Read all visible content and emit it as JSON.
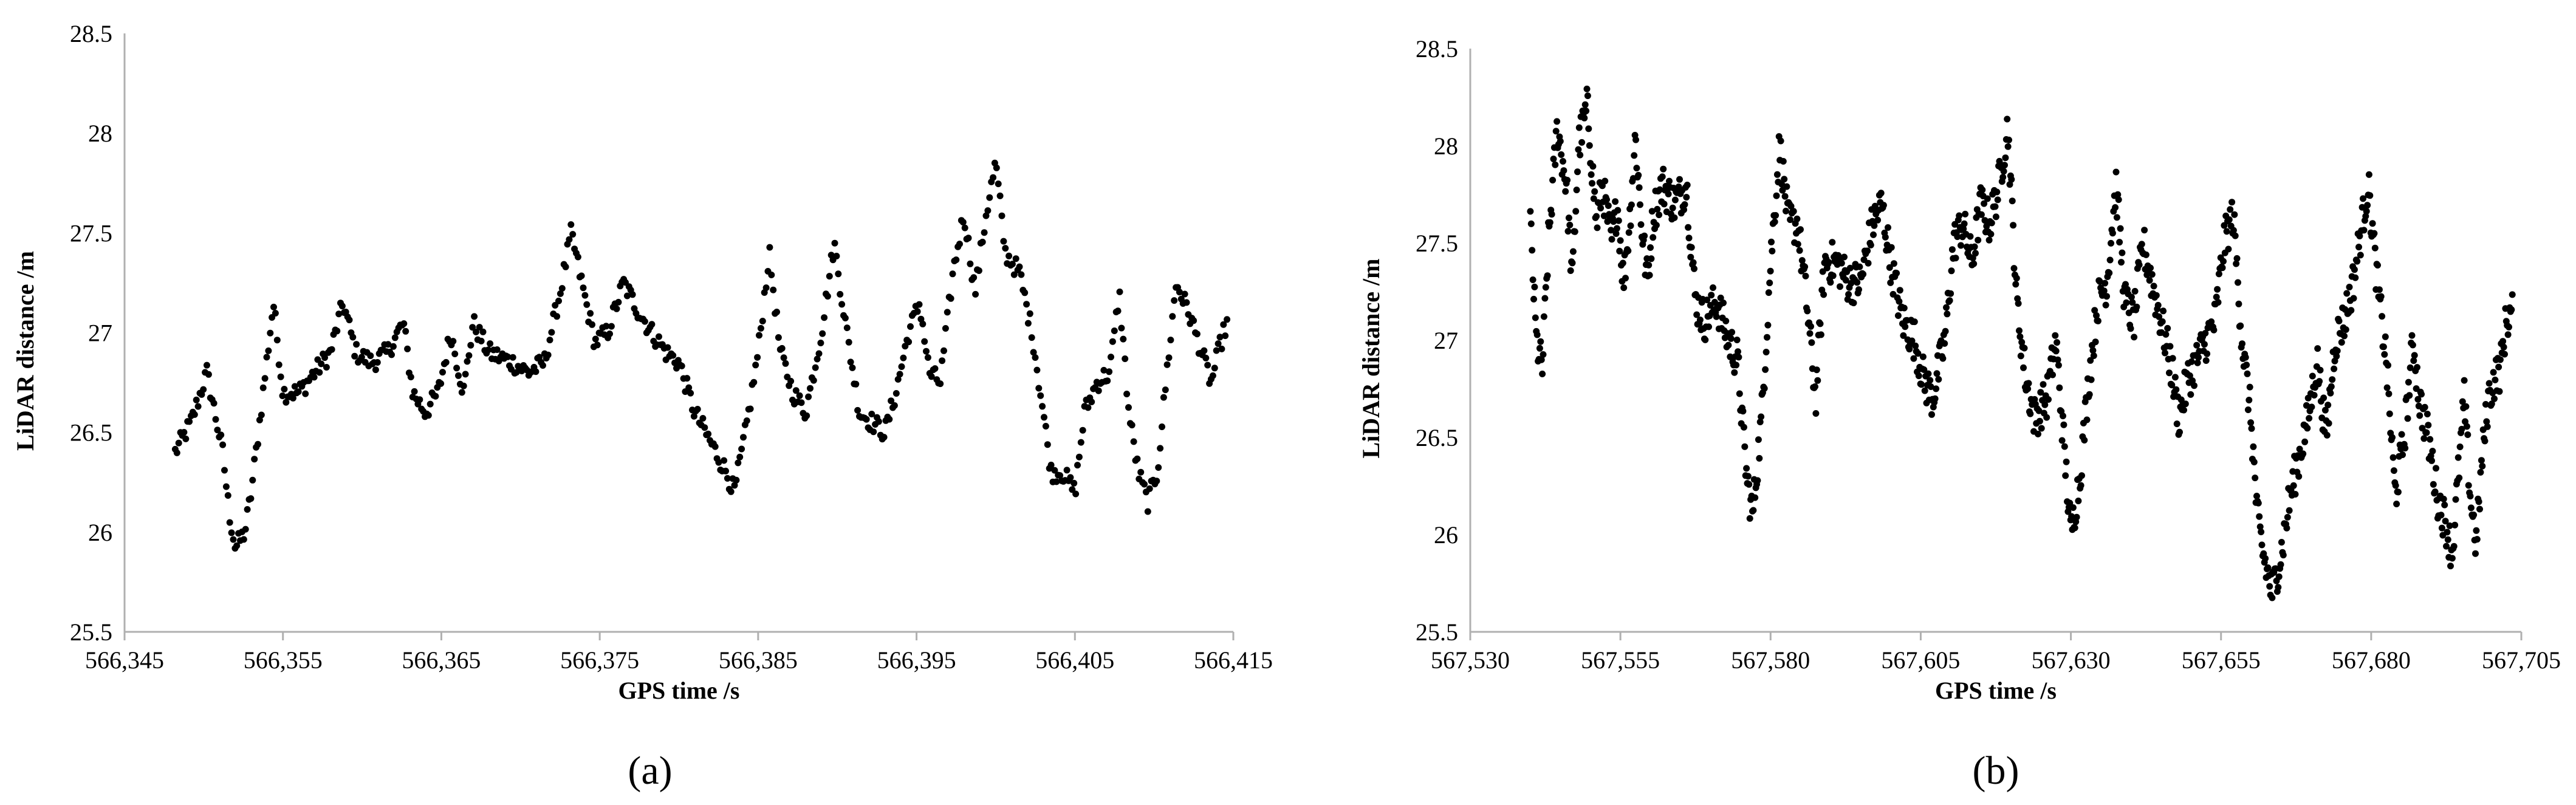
{
  "chart_data": [
    {
      "type": "scatter",
      "panel_label": "(a)",
      "panel_letter": "a",
      "xlabel": "GPS time /s",
      "ylabel": "LiDAR distance /m",
      "xlim": [
        566345,
        566415
      ],
      "ylim": [
        25.5,
        28.5
      ],
      "x_ticks": [
        566345,
        566355,
        566365,
        566375,
        566385,
        566395,
        566405,
        566415
      ],
      "x_tick_labels": [
        "566,345",
        "566,355",
        "566,365",
        "566,375",
        "566,385",
        "566,395",
        "566,405",
        "566,415"
      ],
      "y_ticks": [
        25.5,
        26,
        26.5,
        27,
        27.5,
        28,
        28.5
      ],
      "y_tick_labels": [
        "25.5",
        "26",
        "26.5",
        "27",
        "27.5",
        "28",
        "28.5"
      ],
      "grid": false,
      "marker_color": "#000000",
      "key_points": [
        [
          566348.2,
          26.4
        ],
        [
          566349.2,
          26.55
        ],
        [
          566350.2,
          26.8
        ],
        [
          566350.7,
          26.6
        ],
        [
          566351.2,
          26.4
        ],
        [
          566351.6,
          26.1
        ],
        [
          566352.0,
          25.92
        ],
        [
          566352.6,
          26.0
        ],
        [
          566353.0,
          26.2
        ],
        [
          566353.6,
          26.6
        ],
        [
          566354.4,
          27.15
        ],
        [
          566355.0,
          26.7
        ],
        [
          566356.0,
          26.7
        ],
        [
          566357.0,
          26.8
        ],
        [
          566358.0,
          26.9
        ],
        [
          566358.8,
          27.15
        ],
        [
          566359.6,
          26.9
        ],
        [
          566360.6,
          26.85
        ],
        [
          566361.6,
          26.9
        ],
        [
          566362.6,
          27.05
        ],
        [
          566363.2,
          26.7
        ],
        [
          566364.0,
          26.6
        ],
        [
          566364.8,
          26.7
        ],
        [
          566365.6,
          27.0
        ],
        [
          566366.4,
          26.7
        ],
        [
          566367.0,
          27.05
        ],
        [
          566368.0,
          26.9
        ],
        [
          566369.5,
          26.85
        ],
        [
          566370.5,
          26.8
        ],
        [
          566371.5,
          26.85
        ],
        [
          566372.5,
          27.2
        ],
        [
          566373.2,
          27.5
        ],
        [
          566374.0,
          27.2
        ],
        [
          566374.7,
          26.95
        ],
        [
          566375.5,
          27.0
        ],
        [
          566376.5,
          27.25
        ],
        [
          566377.5,
          27.1
        ],
        [
          566378.3,
          27.0
        ],
        [
          566379.2,
          26.9
        ],
        [
          566380.0,
          26.85
        ],
        [
          566381.0,
          26.6
        ],
        [
          566382.0,
          26.45
        ],
        [
          566383.0,
          26.3
        ],
        [
          566383.5,
          26.2
        ],
        [
          566384.2,
          26.5
        ],
        [
          566385.0,
          26.9
        ],
        [
          566385.7,
          27.4
        ],
        [
          566386.4,
          26.9
        ],
        [
          566387.2,
          26.7
        ],
        [
          566388.0,
          26.6
        ],
        [
          566389.0,
          27.0
        ],
        [
          566389.8,
          27.45
        ],
        [
          566390.6,
          27.0
        ],
        [
          566391.4,
          26.6
        ],
        [
          566392.2,
          26.55
        ],
        [
          566393.0,
          26.5
        ],
        [
          566393.7,
          26.7
        ],
        [
          566394.5,
          27.0
        ],
        [
          566395.2,
          27.15
        ],
        [
          566395.8,
          26.8
        ],
        [
          566396.5,
          26.75
        ],
        [
          566397.3,
          27.3
        ],
        [
          566398.0,
          27.6
        ],
        [
          566398.7,
          27.2
        ],
        [
          566399.4,
          27.6
        ],
        [
          566400.0,
          27.85
        ],
        [
          566400.6,
          27.4
        ],
        [
          566401.5,
          27.3
        ],
        [
          566402.3,
          27.0
        ],
        [
          566403.0,
          26.6
        ],
        [
          566403.5,
          26.3
        ],
        [
          566404.2,
          26.3
        ],
        [
          566405.0,
          26.2
        ],
        [
          566405.6,
          26.6
        ],
        [
          566406.4,
          26.75
        ],
        [
          566407.2,
          26.8
        ],
        [
          566407.8,
          27.2
        ],
        [
          566408.4,
          26.6
        ],
        [
          566409.0,
          26.3
        ],
        [
          566409.6,
          26.15
        ],
        [
          566410.2,
          26.3
        ],
        [
          566410.8,
          26.8
        ],
        [
          566411.4,
          27.25
        ],
        [
          566412.2,
          27.1
        ],
        [
          566413.0,
          26.9
        ],
        [
          566413.6,
          26.75
        ],
        [
          566414.2,
          26.95
        ],
        [
          566414.6,
          27.05
        ]
      ]
    },
    {
      "type": "scatter",
      "panel_label": "(b)",
      "panel_letter": "b",
      "xlabel": "GPS time /s",
      "ylabel": "LiDAR distance /m",
      "xlim": [
        567530,
        567705
      ],
      "ylim": [
        25.5,
        28.5
      ],
      "x_ticks": [
        567530,
        567555,
        567580,
        567605,
        567630,
        567655,
        567680,
        567705
      ],
      "x_tick_labels": [
        "567,530",
        "567,555",
        "567,580",
        "567,605",
        "567,630",
        "567,655",
        "567,680",
        "567,705"
      ],
      "y_ticks": [
        25.5,
        26,
        26.5,
        27,
        27.5,
        28,
        28.5
      ],
      "y_tick_labels": [
        "25.5",
        "26",
        "26.5",
        "27",
        "27.5",
        "28",
        "28.5"
      ],
      "grid": false,
      "marker_color": "#000000",
      "key_points": [
        [
          567540.0,
          27.6
        ],
        [
          567541.0,
          27.0
        ],
        [
          567542.0,
          26.85
        ],
        [
          567543.0,
          27.5
        ],
        [
          567544.5,
          28.1
        ],
        [
          567546.0,
          27.8
        ],
        [
          567547.0,
          27.3
        ],
        [
          567548.0,
          28.0
        ],
        [
          567549.5,
          28.2
        ],
        [
          567551.0,
          27.6
        ],
        [
          567552.0,
          27.8
        ],
        [
          567553.5,
          27.5
        ],
        [
          567554.5,
          27.7
        ],
        [
          567555.5,
          27.3
        ],
        [
          567556.5,
          27.6
        ],
        [
          567557.5,
          28.05
        ],
        [
          567558.5,
          27.6
        ],
        [
          567559.5,
          27.3
        ],
        [
          567560.5,
          27.65
        ],
        [
          567562.0,
          27.8
        ],
        [
          567564.0,
          27.7
        ],
        [
          567566.0,
          27.8
        ],
        [
          567567.5,
          27.2
        ],
        [
          567569.0,
          27.1
        ],
        [
          567571.0,
          27.2
        ],
        [
          567573.0,
          27.0
        ],
        [
          567574.5,
          26.9
        ],
        [
          567576.0,
          26.3
        ],
        [
          567577.0,
          26.1
        ],
        [
          567578.5,
          26.6
        ],
        [
          567580.0,
          27.4
        ],
        [
          567581.5,
          28.0
        ],
        [
          567583.0,
          27.6
        ],
        [
          567584.5,
          27.6
        ],
        [
          567586.0,
          27.2
        ],
        [
          567587.5,
          26.7
        ],
        [
          567589.0,
          27.4
        ],
        [
          567591.0,
          27.4
        ],
        [
          567593.0,
          27.3
        ],
        [
          567595.0,
          27.3
        ],
        [
          567597.0,
          27.6
        ],
        [
          567598.5,
          27.7
        ],
        [
          567600.0,
          27.4
        ],
        [
          567602.0,
          27.1
        ],
        [
          567604.0,
          27.0
        ],
        [
          567605.5,
          26.8
        ],
        [
          567607.0,
          26.7
        ],
        [
          567609.0,
          27.0
        ],
        [
          567610.5,
          27.5
        ],
        [
          567612.0,
          27.6
        ],
        [
          567613.5,
          27.4
        ],
        [
          567615.0,
          27.7
        ],
        [
          567616.5,
          27.6
        ],
        [
          567618.0,
          27.8
        ],
        [
          567619.5,
          28.1
        ],
        [
          567621.0,
          27.2
        ],
        [
          567622.5,
          26.8
        ],
        [
          567624.0,
          26.6
        ],
        [
          567626.0,
          26.7
        ],
        [
          567627.5,
          27.0
        ],
        [
          567629.0,
          26.4
        ],
        [
          567630.0,
          26.0
        ],
        [
          567631.5,
          26.3
        ],
        [
          567633.0,
          26.8
        ],
        [
          567634.5,
          27.2
        ],
        [
          567636.0,
          27.3
        ],
        [
          567637.5,
          27.8
        ],
        [
          567639.0,
          27.2
        ],
        [
          567640.5,
          27.1
        ],
        [
          567642.0,
          27.5
        ],
        [
          567643.5,
          27.3
        ],
        [
          567645.0,
          27.1
        ],
        [
          567646.5,
          26.9
        ],
        [
          567648.0,
          26.6
        ],
        [
          567649.5,
          26.8
        ],
        [
          567651.0,
          26.9
        ],
        [
          567652.5,
          27.0
        ],
        [
          567654.0,
          27.1
        ],
        [
          567655.5,
          27.5
        ],
        [
          567657.0,
          27.65
        ],
        [
          567658.5,
          27.0
        ],
        [
          567660.0,
          26.6
        ],
        [
          567661.0,
          26.1
        ],
        [
          567662.0,
          25.9
        ],
        [
          567663.5,
          25.7
        ],
        [
          567665.0,
          25.9
        ],
        [
          567666.5,
          26.2
        ],
        [
          567668.0,
          26.4
        ],
        [
          567669.5,
          26.6
        ],
        [
          567671.0,
          26.9
        ],
        [
          567672.5,
          26.5
        ],
        [
          567674.0,
          27.0
        ],
        [
          567675.5,
          27.1
        ],
        [
          567677.0,
          27.3
        ],
        [
          567678.5,
          27.6
        ],
        [
          567679.5,
          27.8
        ],
        [
          567681.0,
          27.3
        ],
        [
          567682.5,
          26.9
        ],
        [
          567684.0,
          26.2
        ],
        [
          567685.5,
          26.5
        ],
        [
          567687.0,
          27.0
        ],
        [
          567688.0,
          26.7
        ],
        [
          567689.5,
          26.5
        ],
        [
          567691.0,
          26.2
        ],
        [
          567692.5,
          26.05
        ],
        [
          567693.5,
          25.9
        ],
        [
          567694.5,
          26.3
        ],
        [
          567695.5,
          26.7
        ],
        [
          567696.5,
          26.2
        ],
        [
          567697.5,
          25.95
        ],
        [
          567698.5,
          26.4
        ],
        [
          567699.5,
          26.7
        ],
        [
          567700.5,
          26.8
        ],
        [
          567701.5,
          26.85
        ],
        [
          567702.5,
          27.1
        ],
        [
          567703.5,
          27.15
        ]
      ]
    }
  ]
}
